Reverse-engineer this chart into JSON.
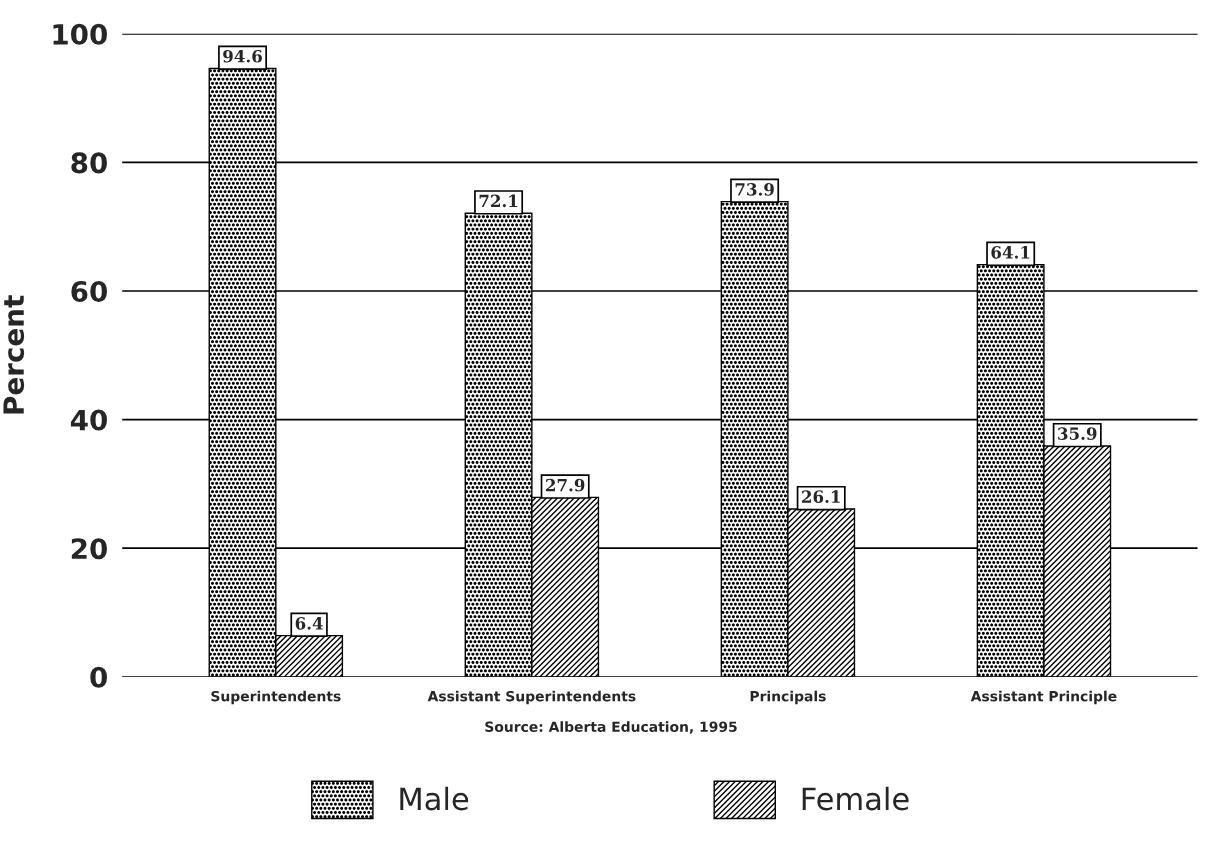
{
  "chart_data": {
    "type": "bar",
    "ylabel": "Percent",
    "categories": [
      "Superintendents",
      "Assistant Superintendents",
      "Principals",
      "Assistant Principle"
    ],
    "series": [
      {
        "name": "Male",
        "color": "#000000",
        "values": [
          94.6,
          72.1,
          73.9,
          64.1
        ]
      },
      {
        "name": "Female",
        "color": "#000000",
        "values": [
          6.4,
          27.9,
          26.1,
          35.9
        ]
      }
    ],
    "ylim": [
      0,
      100
    ],
    "yticks": [
      0,
      20,
      40,
      60,
      80,
      100
    ],
    "grid": "y",
    "data_labels": true,
    "legend": "bottom",
    "annotations": [
      "Source: Alberta Education, 1995"
    ]
  }
}
